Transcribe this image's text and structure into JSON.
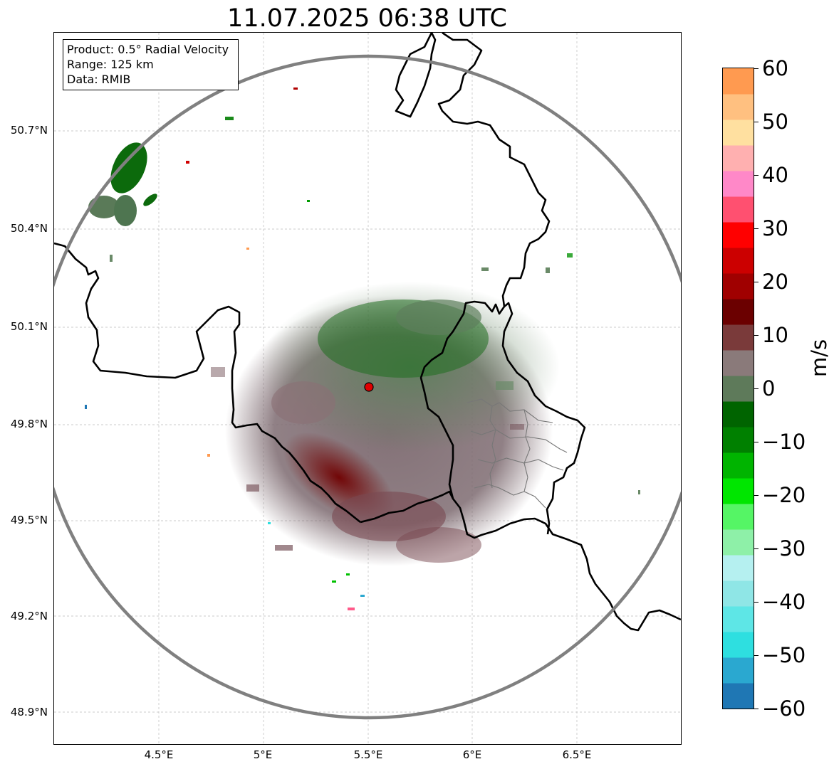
{
  "title": "11.07.2025 06:38 UTC",
  "info": {
    "product": "Product: 0.5° Radial Velocity",
    "range": "Range: 125 km",
    "data_source": "Data: RMIB"
  },
  "axes": {
    "lat_labels": [
      "50.7°N",
      "50.4°N",
      "50.1°N",
      "49.8°N",
      "49.5°N",
      "49.2°N",
      "48.9°N"
    ],
    "lon_labels": [
      "4.5°E",
      "5°E",
      "5.5°E",
      "6°E",
      "6.5°E"
    ]
  },
  "colorbar": {
    "label": "m/s",
    "ticks": [
      "60",
      "50",
      "40",
      "30",
      "20",
      "10",
      "0",
      "−10",
      "−20",
      "−30",
      "−40",
      "−50",
      "−60"
    ],
    "range": [
      -60,
      60
    ],
    "stops": [
      "#1f77b4",
      "#2aa8d0",
      "#2edfe0",
      "#5ee6e6",
      "#8fe6e6",
      "#b5f0f0",
      "#8ef0a8",
      "#55f565",
      "#00e600",
      "#00b400",
      "#008000",
      "#006400",
      "#5e7a5a",
      "#8a7a7a",
      "#7a3a3a",
      "#6b0000",
      "#a00000",
      "#cc0000",
      "#ff0000",
      "#ff5070",
      "#ff88c8",
      "#ffb0b0",
      "#ffe0a0",
      "#ffc080",
      "#ff9a50"
    ]
  },
  "colors": {
    "approach": "#006400",
    "recede": "#7a0000",
    "weak_neg": "#5e7a5a",
    "weak_pos": "#8a6a70",
    "range_ring": "#808080",
    "radar_site": "#e00000"
  }
}
